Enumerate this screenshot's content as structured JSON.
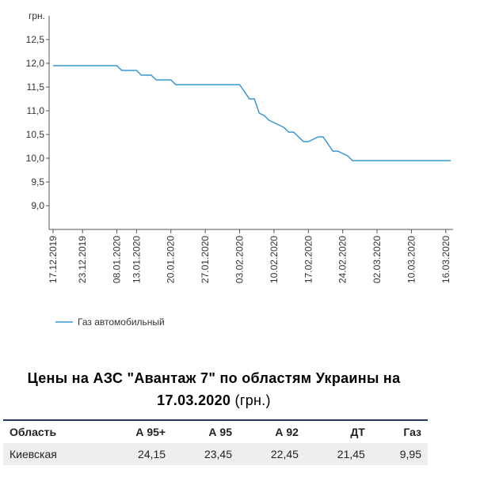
{
  "chart_data": {
    "type": "line",
    "y_unit_label": "грн.",
    "categories": [
      "17.12.2019",
      null,
      null,
      null,
      null,
      null,
      "23.12.2019",
      null,
      null,
      null,
      null,
      null,
      null,
      "08.01.2020",
      null,
      null,
      null,
      "13.01.2020",
      null,
      null,
      null,
      null,
      null,
      null,
      "20.01.2020",
      null,
      null,
      null,
      null,
      null,
      null,
      "27.01.2020",
      null,
      null,
      null,
      null,
      null,
      null,
      "03.02.2020",
      null,
      null,
      null,
      null,
      null,
      null,
      "10.02.2020",
      null,
      null,
      null,
      null,
      null,
      null,
      "17.02.2020",
      null,
      null,
      null,
      null,
      null,
      null,
      "24.02.2020",
      null,
      null,
      null,
      null,
      null,
      null,
      "02.03.2020",
      null,
      null,
      null,
      null,
      null,
      null,
      "10.03.2020",
      null,
      null,
      null,
      null,
      null,
      null,
      "16.03.2020",
      null
    ],
    "series": [
      {
        "name": "Газ автомобильный",
        "color": "#3795d4",
        "values": [
          11.95,
          11.95,
          11.95,
          11.95,
          11.95,
          11.95,
          11.95,
          11.95,
          11.95,
          11.95,
          11.95,
          11.95,
          11.95,
          11.95,
          11.85,
          11.85,
          11.85,
          11.85,
          11.75,
          11.75,
          11.75,
          11.65,
          11.65,
          11.65,
          11.65,
          11.55,
          11.55,
          11.55,
          11.55,
          11.55,
          11.55,
          11.55,
          11.55,
          11.55,
          11.55,
          11.55,
          11.55,
          11.55,
          11.55,
          11.4,
          11.25,
          11.25,
          10.95,
          10.9,
          10.8,
          10.75,
          10.7,
          10.65,
          10.55,
          10.55,
          10.45,
          10.35,
          10.35,
          10.4,
          10.45,
          10.45,
          10.3,
          10.15,
          10.15,
          10.1,
          10.05,
          9.95,
          9.95,
          9.95,
          9.95,
          9.95,
          9.95,
          9.95,
          9.95,
          9.95,
          9.95,
          9.95,
          9.95,
          9.95,
          9.95,
          9.95,
          9.95,
          9.95,
          9.95,
          9.95,
          9.95,
          9.95
        ]
      }
    ],
    "ylim": [
      8.5,
      13.0
    ],
    "yticks": [
      {
        "value": 9.0,
        "label": "9,0"
      },
      {
        "value": 9.5,
        "label": "9,5"
      },
      {
        "value": 10.0,
        "label": "10,0"
      },
      {
        "value": 10.5,
        "label": "10,5"
      },
      {
        "value": 11.0,
        "label": "11,0"
      },
      {
        "value": 11.5,
        "label": "11,5"
      },
      {
        "value": 12.0,
        "label": "12,0"
      },
      {
        "value": 12.5,
        "label": "12,5"
      }
    ],
    "grid": false,
    "legend": "bottom-left"
  },
  "table": {
    "title": "Цены на АЗС \"Авантаж 7\" по областям Украины на 17.03.2020",
    "title_unit": "(грн.)",
    "header": [
      "Область",
      "А 95+",
      "А 95",
      "А 92",
      "ДТ",
      "Газ"
    ],
    "rows": [
      [
        "Киевская",
        "24,15",
        "23,45",
        "22,45",
        "21,45",
        "9,95"
      ]
    ]
  }
}
